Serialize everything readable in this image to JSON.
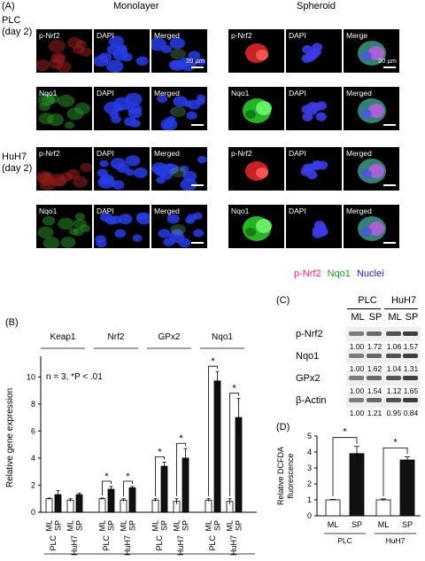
{
  "panel_a": {
    "label": "(A)",
    "monolayer_title": "Monolayer",
    "spheroid_title": "Spheroid",
    "row_groups": [
      {
        "name": "PLC",
        "sub": "(day 2)"
      },
      {
        "name": "HuH7",
        "sub": "(day 2)"
      }
    ],
    "tile_labels": {
      "pnrf2": "p-Nrf2",
      "nqo1": "Nqo1",
      "dapi": "DAPI",
      "merged": "Merged",
      "merge": "Merge"
    },
    "scale_bar": "20 µm",
    "legend": {
      "pnrf2": "p-Nrf2",
      "nqo1": "Nqo1",
      "nuclei": "Nuclei"
    },
    "colors": {
      "red": "#e8247a",
      "green": "#1a9a1a",
      "blue": "#1c1cdc"
    }
  },
  "chart_data": [
    {
      "panel": "(B)",
      "type": "bar",
      "ylabel": "Relative gene expression",
      "annotation": "n = 3, *P < .01",
      "ylim": [
        0,
        11
      ],
      "yticks": [
        0,
        2,
        4,
        6,
        8,
        10
      ],
      "genes": [
        "Keap1",
        "Nrf2",
        "GPx2",
        "Nqo1"
      ],
      "cell_lines": [
        "PLC",
        "HuH7"
      ],
      "conditions": [
        "ML",
        "SP"
      ],
      "values": {
        "Keap1": {
          "PLC": [
            1.0,
            1.3
          ],
          "HuH7": [
            0.9,
            1.3
          ]
        },
        "Nrf2": {
          "PLC": [
            1.0,
            1.7
          ],
          "HuH7": [
            0.9,
            1.8
          ]
        },
        "GPx2": {
          "PLC": [
            0.9,
            3.4
          ],
          "HuH7": [
            0.8,
            4.0
          ]
        },
        "Nqo1": {
          "PLC": [
            0.9,
            9.7
          ],
          "HuH7": [
            0.8,
            7.0
          ]
        }
      },
      "errors": {
        "Keap1": {
          "PLC": [
            0.05,
            0.3
          ],
          "HuH7": [
            0.1,
            0.1
          ]
        },
        "Nrf2": {
          "PLC": [
            0.05,
            0.2
          ],
          "HuH7": [
            0.1,
            0.1
          ]
        },
        "GPx2": {
          "PLC": [
            0.1,
            0.3
          ],
          "HuH7": [
            0.2,
            0.7
          ]
        },
        "Nqo1": {
          "PLC": [
            0.1,
            0.7
          ],
          "HuH7": [
            0.2,
            1.4
          ]
        }
      },
      "significance": {
        "Nrf2": [
          "PLC",
          "HuH7"
        ],
        "GPx2": [
          "PLC",
          "HuH7"
        ],
        "Nqo1": [
          "PLC",
          "HuH7"
        ]
      },
      "star": "*"
    },
    {
      "panel": "(D)",
      "type": "bar",
      "ylabel": "Relative DCFDA fluorescence",
      "ylim": [
        0,
        5
      ],
      "yticks": [
        0,
        1,
        2,
        3,
        4,
        5
      ],
      "categories": [
        "ML",
        "SP",
        "ML",
        "SP"
      ],
      "groups": [
        "PLC",
        "HuH7"
      ],
      "values": [
        1.0,
        3.9,
        1.0,
        3.5
      ],
      "errors": [
        0.03,
        0.45,
        0.06,
        0.2
      ],
      "star": "*"
    }
  ],
  "panel_c": {
    "label": "(C)",
    "cell_lines": [
      "PLC",
      "HuH7"
    ],
    "conditions": [
      "ML",
      "SP",
      "ML",
      "SP"
    ],
    "rows": [
      {
        "name": "p-Nrf2",
        "values": [
          "1.00",
          "1.72",
          "1.06",
          "1.57"
        ]
      },
      {
        "name": "Nqo1",
        "values": [
          "1.00",
          "1.62",
          "1.04",
          "1.31"
        ]
      },
      {
        "name": "GPx2",
        "values": [
          "1.00",
          "1.54",
          "1.12",
          "1.65"
        ]
      },
      {
        "name": "β-Actin",
        "values": [
          "1.00",
          "1.21",
          "0.95",
          "0.84"
        ]
      }
    ]
  }
}
